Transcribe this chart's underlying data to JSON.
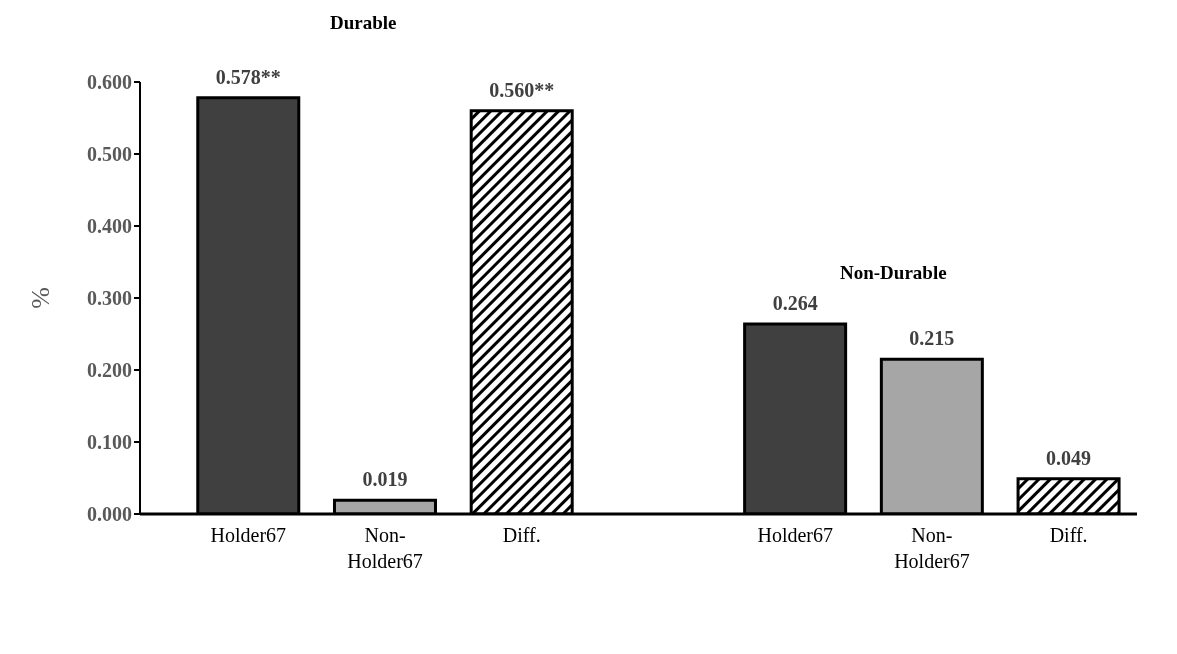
{
  "chart_data": {
    "type": "bar",
    "ylabel": "%",
    "categories": [
      "Holder67",
      "Non-Holder67",
      "Diff.",
      null,
      "Holder67",
      "Non-Holder67",
      "Diff."
    ],
    "values": [
      0.578,
      0.019,
      0.56,
      null,
      0.264,
      0.215,
      0.049
    ],
    "colors": [
      "#404040",
      "#a6a6a6",
      "#000000",
      null,
      "#404040",
      "#a6a6a6",
      "#000000"
    ],
    "value_labels": [
      "0.578**",
      "0.019",
      "0.560**",
      null,
      "0.264",
      "0.215",
      "0.049"
    ],
    "ylim": [
      0,
      0.6
    ],
    "yticks": [
      {
        "value": 0,
        "label": "0.000"
      },
      {
        "value": 0.1,
        "label": "0.100"
      },
      {
        "value": 0.2,
        "label": "0.200"
      },
      {
        "value": 0.3,
        "label": "0.300"
      },
      {
        "value": 0.4,
        "label": "0.400"
      },
      {
        "value": 0.5,
        "label": "0.500"
      },
      {
        "value": 0.6,
        "label": "0.600"
      }
    ],
    "annotations": [
      "Durable",
      "Non-Durable"
    ],
    "grid": false,
    "legend": false
  }
}
